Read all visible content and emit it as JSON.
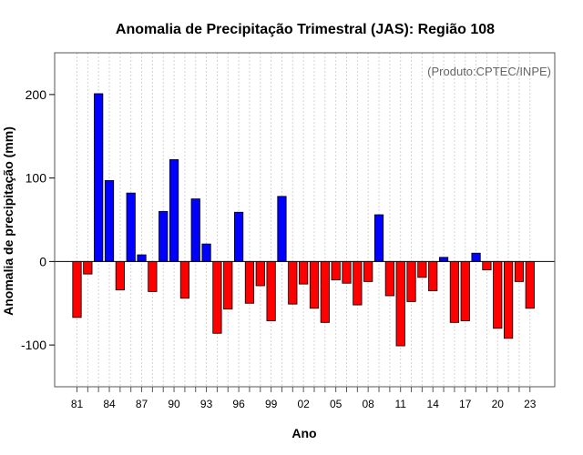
{
  "chart_data": {
    "type": "bar",
    "title": "Anomalia de Precipitação Trimestral (JAS): Região 108",
    "xlabel": "Ano",
    "ylabel": "Anomalia de precipitação (mm)",
    "annotation": "(Produto:CPTEC/INPE)",
    "ylim": [
      -150,
      250
    ],
    "yticks": [
      -100,
      0,
      100,
      200
    ],
    "yticklabels": [
      "-100",
      "0",
      "100",
      "200"
    ],
    "xticklabels": [
      "81",
      "84",
      "87",
      "90",
      "93",
      "96",
      "99",
      "02",
      "05",
      "08",
      "11",
      "14",
      "17",
      "20",
      "23"
    ],
    "grid": "vertical-dotted",
    "categories": [
      "1981",
      "1982",
      "1983",
      "1984",
      "1985",
      "1986",
      "1987",
      "1988",
      "1989",
      "1990",
      "1991",
      "1992",
      "1993",
      "1994",
      "1995",
      "1996",
      "1997",
      "1998",
      "1999",
      "2000",
      "2001",
      "2002",
      "2003",
      "2004",
      "2005",
      "2006",
      "2007",
      "2008",
      "2009",
      "2010",
      "2011",
      "2012",
      "2013",
      "2014",
      "2015",
      "2016",
      "2017",
      "2018",
      "2019",
      "2020",
      "2021",
      "2022",
      "2023"
    ],
    "values": [
      -67,
      -15,
      201,
      97,
      -34,
      82,
      8,
      -36,
      60,
      122,
      -44,
      75,
      21,
      -86,
      -57,
      59,
      -50,
      -29,
      -71,
      78,
      -51,
      -27,
      -56,
      -73,
      -22,
      -26,
      -52,
      -24,
      56,
      -41,
      -101,
      -48,
      -19,
      -35,
      5,
      -73,
      -71,
      10,
      -10,
      -80,
      -92,
      -24,
      -56
    ],
    "positive_color": "#0000ff",
    "negative_color": "#ff0000"
  }
}
